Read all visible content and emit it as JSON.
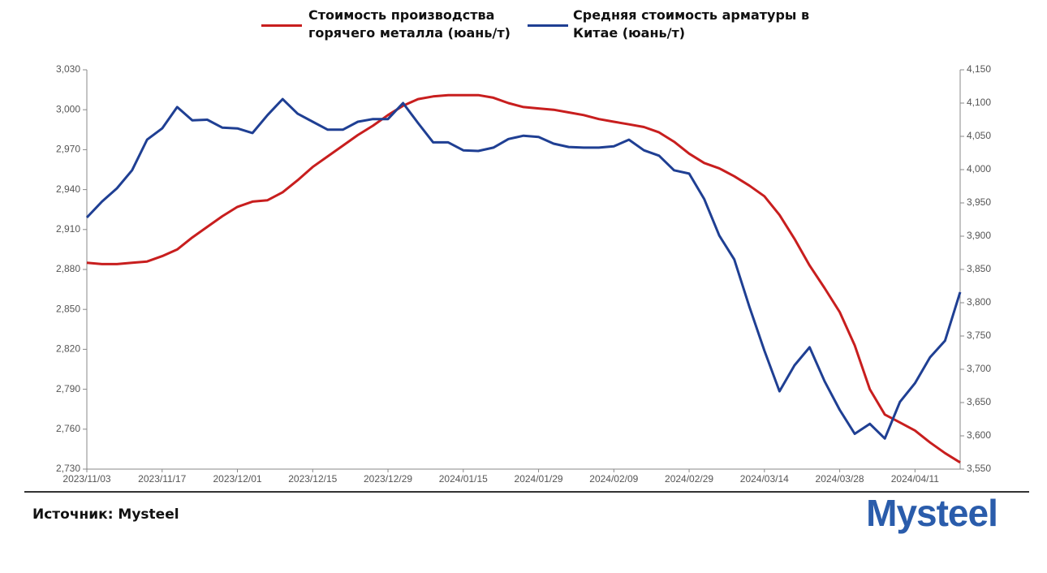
{
  "chart_data": {
    "type": "line",
    "categories": [
      "2023/11/03",
      null,
      null,
      null,
      null,
      "2023/11/17",
      null,
      null,
      null,
      null,
      "2023/12/01",
      null,
      null,
      null,
      null,
      "2023/12/15",
      null,
      null,
      null,
      null,
      "2023/12/29",
      null,
      null,
      null,
      null,
      "2024/01/15",
      null,
      null,
      null,
      null,
      "2024/01/29",
      null,
      null,
      null,
      null,
      "2024/02/09",
      null,
      null,
      null,
      null,
      "2024/02/29",
      null,
      null,
      null,
      null,
      "2024/03/14",
      null,
      null,
      null,
      null,
      "2024/03/28",
      null,
      null,
      null,
      null,
      "2024/04/11",
      null,
      null,
      null
    ],
    "series": [
      {
        "name": "Стоимость производства горячего металла (юань/т)",
        "color": "#c81e1e",
        "values": [
          2885,
          2884,
          2884,
          2885,
          2886,
          2890,
          2895,
          2904,
          2912,
          2920,
          2927,
          2931,
          2932,
          2938,
          2947,
          2957,
          2965,
          2973,
          2981,
          2988,
          2996,
          3003,
          3008,
          3010,
          3011,
          3011,
          3011,
          3009,
          3005,
          3002,
          3001,
          3000,
          2998,
          2996,
          2993,
          2991,
          2989,
          2987,
          2983,
          2976,
          2967,
          2960,
          2956,
          2950,
          2943,
          2935,
          2921,
          2903,
          2883,
          2866,
          2848,
          2823,
          2790,
          2771,
          2765,
          2759,
          2750,
          2742,
          2735
        ]
      },
      {
        "name": "Средняя стоимость арматуры в Китае (юань/т)",
        "color": "#1f3f93",
        "axis": "y2",
        "values": [
          3928,
          3952,
          3972,
          3999,
          4045,
          4062,
          4094,
          4074,
          4075,
          4063,
          4062,
          4055,
          4082,
          4106,
          4084,
          4072,
          4060,
          4060,
          4072,
          4076,
          4076,
          4100,
          4070,
          4041,
          4041,
          4029,
          4028,
          4033,
          4046,
          4051,
          4049,
          4039,
          4034,
          4033,
          4033,
          4035,
          4045,
          4029,
          4021,
          3999,
          3994,
          3956,
          3901,
          3865,
          3794,
          3728,
          3667,
          3706,
          3733,
          3682,
          3639,
          3603,
          3618,
          3596,
          3651,
          3679,
          3718,
          3743,
          3816
        ]
      }
    ],
    "ylim": [
      2730,
      3030
    ],
    "yticks": [
      {
        "value": 2730,
        "label": "2,730"
      },
      {
        "value": 2760,
        "label": "2,760"
      },
      {
        "value": 2790,
        "label": "2,790"
      },
      {
        "value": 2820,
        "label": "2,820"
      },
      {
        "value": 2850,
        "label": "2,850"
      },
      {
        "value": 2880,
        "label": "2,880"
      },
      {
        "value": 2910,
        "label": "2,910"
      },
      {
        "value": 2940,
        "label": "2,940"
      },
      {
        "value": 2970,
        "label": "2,970"
      },
      {
        "value": 3000,
        "label": "3,000"
      },
      {
        "value": 3030,
        "label": "3,030"
      }
    ],
    "y2lim": [
      3550,
      4150
    ],
    "y2ticks": [
      {
        "value": 3550,
        "label": "3,550"
      },
      {
        "value": 3600,
        "label": "3,600"
      },
      {
        "value": 3650,
        "label": "3,650"
      },
      {
        "value": 3700,
        "label": "3,700"
      },
      {
        "value": 3750,
        "label": "3,750"
      },
      {
        "value": 3800,
        "label": "3,800"
      },
      {
        "value": 3850,
        "label": "3,850"
      },
      {
        "value": 3900,
        "label": "3,900"
      },
      {
        "value": 3950,
        "label": "3,950"
      },
      {
        "value": 4000,
        "label": "4,000"
      },
      {
        "value": 4050,
        "label": "4,050"
      },
      {
        "value": 4100,
        "label": "4,100"
      },
      {
        "value": 4150,
        "label": "4,150"
      }
    ],
    "grid": false,
    "source": "Источник: Mysteel",
    "logo": "Mysteel"
  }
}
